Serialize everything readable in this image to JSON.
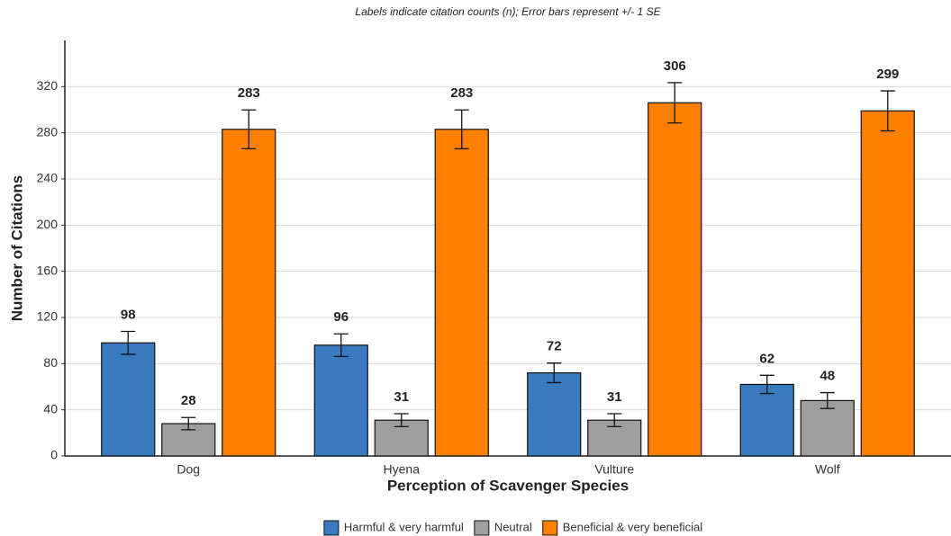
{
  "chart_data": {
    "type": "bar",
    "subtitle": "Labels indicate citation counts (n); Error bars represent +/- 1 SE",
    "xlabel": "Perception of Scavenger Species",
    "ylabel": "Number of Citations",
    "categories": [
      "Dog",
      "Hyena",
      "Vulture",
      "Wolf"
    ],
    "series": [
      {
        "name": "Harmful & very harmful",
        "color": "#3a7bbf",
        "values": [
          98,
          96,
          72,
          62
        ],
        "errors": [
          9.9,
          9.8,
          8.5,
          7.9
        ]
      },
      {
        "name": "Neutral",
        "color": "#9e9e9e",
        "values": [
          28,
          31,
          31,
          48
        ],
        "errors": [
          5.3,
          5.6,
          5.6,
          6.9
        ]
      },
      {
        "name": "Beneficial & very beneficial",
        "color": "#ff7f00",
        "values": [
          283,
          283,
          306,
          299
        ],
        "errors": [
          16.8,
          16.8,
          17.5,
          17.3
        ]
      }
    ],
    "ylim": [
      0,
      360
    ],
    "yticks": [
      0,
      40,
      80,
      120,
      160,
      200,
      240,
      280,
      320
    ],
    "grid": true,
    "legend": "bottom"
  }
}
